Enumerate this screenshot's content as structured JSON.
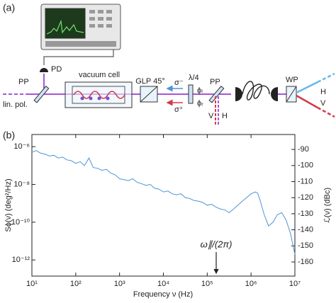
{
  "panel_a": {
    "label": "(a)",
    "pd": "PD",
    "pp_left": "PP",
    "lin_pol": "lin. pol.",
    "vacuum_cell": "vacuum cell",
    "glp": "GLP 45°",
    "quarter_wave": "λ/4",
    "sigma_minus": "σ⁻",
    "sigma_plus": "σ⁺",
    "phi_top": "ϕₗ",
    "phi_bottom": "ϕᵣ",
    "pp_right": "PP",
    "v_low": "V",
    "h_low": "H",
    "wp": "WP",
    "h_out": "H",
    "v_out": "V"
  },
  "chart_data": {
    "type": "line",
    "label": "(b)",
    "xlabel": "Frequency ν (Hz)",
    "ylabel": "Sϕ(ν) (deg²/Hz)",
    "y2label": "ℒ(ν) (dBc)",
    "annotation": "ω∥/(2π)",
    "xscale": "log",
    "yscale": "log",
    "x": [
      10,
      12.6,
      15.8,
      20,
      25.1,
      31.6,
      39.8,
      50.1,
      63.1,
      79.4,
      100,
      126,
      158,
      200,
      251,
      316,
      398,
      501,
      631,
      794,
      1000,
      1259,
      1585,
      1995,
      2512,
      3162,
      3981,
      5012,
      6310,
      7943,
      10000,
      12589,
      15849,
      19953,
      25119,
      31623,
      39811,
      50119,
      63096,
      79433,
      100000,
      125893,
      158489,
      199526,
      251189,
      316228,
      398107,
      501187,
      630957,
      794328,
      1000000,
      1258925,
      1412538,
      1584893,
      1995262,
      2511886,
      3162278,
      3981072,
      5011872,
      6309573,
      7943282,
      10000000
    ],
    "series": [
      {
        "color": "#4d94d6",
        "values": [
          5e-07,
          6.3e-07,
          4.5e-07,
          4e-07,
          3.2e-07,
          3.5e-07,
          2.5e-07,
          2.8e-07,
          2e-07,
          1.8e-07,
          1.3e-07,
          1.6e-07,
          1e-07,
          2.5e-07,
          7.9e-08,
          7.1e-08,
          5.6e-08,
          6.3e-08,
          4e-08,
          3.2e-08,
          2e-08,
          1.8e-08,
          1.6e-08,
          2e-08,
          1.3e-08,
          1.1e-08,
          8.9e-09,
          1e-08,
          6.3e-09,
          5.6e-09,
          4e-09,
          4.5e-09,
          3.2e-09,
          2.8e-09,
          3.2e-09,
          2e-09,
          1.8e-09,
          1.4e-09,
          1.3e-09,
          1.1e-09,
          7.9e-10,
          8.9e-10,
          6.3e-10,
          5e-10,
          4.5e-10,
          3.2e-10,
          5e-10,
          7.9e-10,
          1.3e-09,
          2e-09,
          3.2e-09,
          4e-09,
          3.5e-09,
          1.6e-09,
          2.5e-10,
          6.3e-11,
          1e-10,
          2.5e-10,
          3.2e-10,
          1.3e-10,
          2.5e-11,
          2e-12
        ]
      }
    ],
    "xlim": [
      10,
      10000000
    ],
    "xticks": [
      {
        "value": 10,
        "label": "10¹"
      },
      {
        "value": 100,
        "label": "10²"
      },
      {
        "value": 1000,
        "label": "10³"
      },
      {
        "value": 10000,
        "label": "10⁴"
      },
      {
        "value": 100000,
        "label": "10⁵"
      },
      {
        "value": 1000000,
        "label": "10⁶"
      },
      {
        "value": 10000000,
        "label": "10⁷"
      }
    ],
    "ylim": [
      1.4e-13,
      4.4e-06
    ],
    "yticks": [
      {
        "value": 1e-06,
        "label": "10⁻⁶"
      },
      {
        "value": 1e-08,
        "label": "10⁻⁸"
      },
      {
        "value": 1e-10,
        "label": "10⁻¹⁰"
      },
      {
        "value": 1e-12,
        "label": "10⁻¹²"
      }
    ],
    "y2lim": [
      -168.8,
      -80.7
    ],
    "y2ticks": [
      -90,
      -100,
      -110,
      -120,
      -130,
      -140,
      -150,
      -160
    ]
  }
}
